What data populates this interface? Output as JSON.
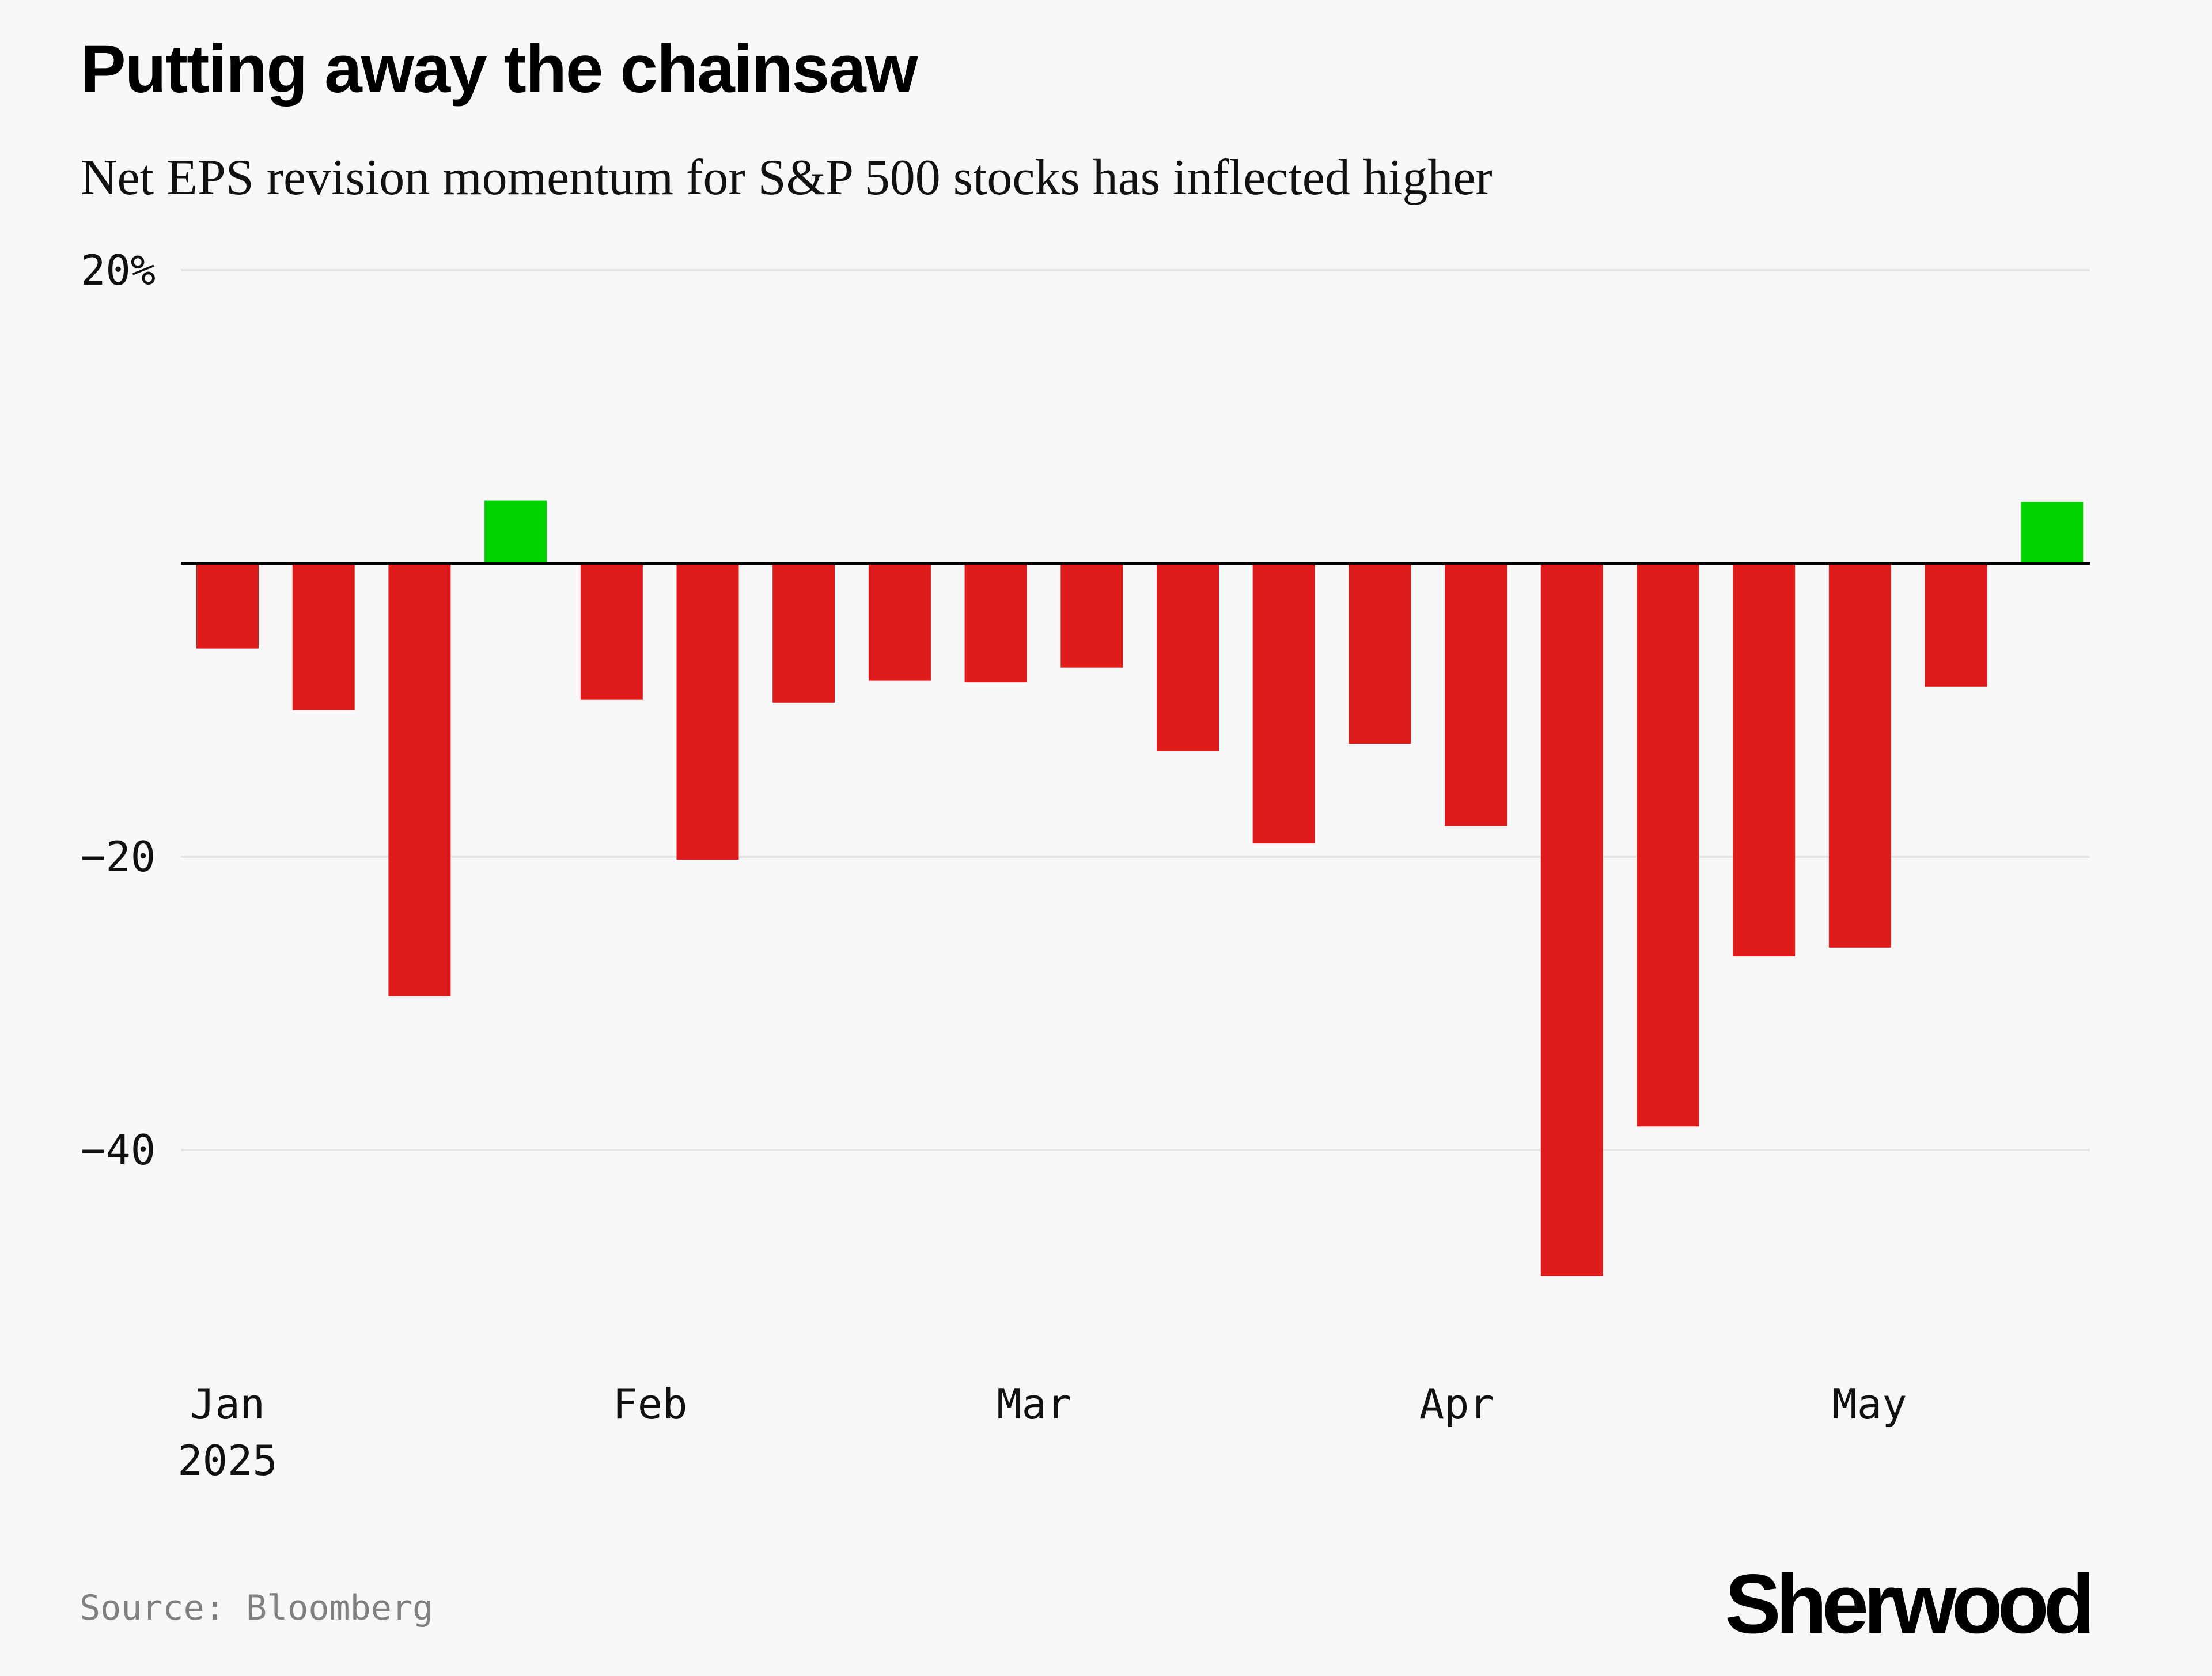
{
  "chart_data": {
    "type": "bar",
    "title": "Putting away the chainsaw",
    "subtitle": "Net EPS revision momentum for S&P 500 stocks has inflected higher",
    "xlabel": "",
    "ylabel": "",
    "ylim": [
      -55,
      20
    ],
    "y_ticks": [
      {
        "value": 20,
        "label": "20%"
      },
      {
        "value": -20,
        "label": "−20"
      },
      {
        "value": -40,
        "label": "−40"
      }
    ],
    "x_ticks": [
      {
        "position": 0,
        "label": "Jan",
        "sublabel": "2025"
      },
      {
        "position": 4.4,
        "label": "Feb",
        "sublabel": ""
      },
      {
        "position": 8.4,
        "label": "Mar",
        "sublabel": ""
      },
      {
        "position": 12.8,
        "label": "Apr",
        "sublabel": ""
      },
      {
        "position": 17.1,
        "label": "May",
        "sublabel": ""
      }
    ],
    "values": [
      -5.8,
      -10,
      -29.5,
      4.3,
      -9.3,
      -20.2,
      -9.5,
      -8,
      -8.1,
      -7.1,
      -12.8,
      -19.1,
      -12.3,
      -17.9,
      -48.6,
      -38.4,
      -26.8,
      -26.2,
      -8.4,
      4.2
    ],
    "grid": true,
    "colors": {
      "positive": "#00d200",
      "negative": "#e01b1b",
      "grid": "#e6e6e6",
      "zero_line": "#000000"
    }
  },
  "source": "Source: Bloomberg",
  "brand": "Sherwood"
}
